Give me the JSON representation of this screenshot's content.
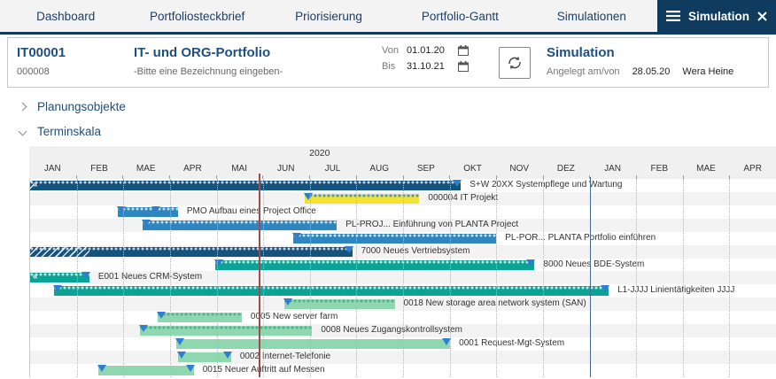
{
  "nav": {
    "tabs": [
      "Dashboard",
      "Portfoliosteckbrief",
      "Priorisierung",
      "Portfolio-Gantt",
      "Simulationen"
    ],
    "active_tab": "Simulation"
  },
  "header": {
    "id": "IT00001",
    "code": "000008",
    "title": "IT- und ORG-Portfolio",
    "subtitle": "-Bitte eine Bezeichnung eingeben-",
    "von_label": "Von",
    "von_value": "01.01.20",
    "bis_label": "Bis",
    "bis_value": "31.10.21",
    "sim_title": "Simulation",
    "created_label": "Angelegt am/von",
    "created_date": "28.05.20",
    "created_by": "Wera Heine"
  },
  "sections": {
    "planungsobjekte": "Planungsobjekte",
    "terminskala": "Terminskala"
  },
  "colors": {
    "active_tab_bg": "#0f3b5e",
    "nav_text": "#1c3f63",
    "heading": "#1d5080",
    "navy_bar": "#15537e",
    "blue_bar": "#2e86c0",
    "teal_bar": "#0aa396",
    "mint_bar": "#8fd7af",
    "yellow_bar": "#f2e233",
    "today_line": "#9e4b4b",
    "year_line": "#46688e",
    "triangle": "#2e7fd0",
    "dot_on_dark": "rgba(255,255,255,0.75)",
    "dot_on_yellow": "#4a90d9",
    "dot_on_mint": "rgba(10,120,110,0.45)"
  },
  "chart_data": {
    "type": "gantt",
    "year_label": "2020",
    "months": [
      "JAN",
      "FEB",
      "MAE",
      "APR",
      "MAI",
      "JUN",
      "JUL",
      "AUG",
      "SEP",
      "OKT",
      "NOV",
      "DEZ",
      "JAN",
      "FEB",
      "MAE",
      "APR"
    ],
    "timeline_months": 16,
    "timeline_start": "01.01.2020",
    "today_line_month": 4.9,
    "year_line_month": 12.0,
    "rows": [
      {
        "label": "S+W 20XX Systempflege und Wartung",
        "start": 0,
        "end": 9.24,
        "color": "navy_bar",
        "dotted": true,
        "tri_end": true,
        "continues_left": true,
        "hatch_until": 0.07
      },
      {
        "label": "000004 IT Projekt",
        "start": 5.9,
        "end": 8.35,
        "color": "yellow_bar",
        "dotted": true,
        "tri_start": true
      },
      {
        "label": "PMO  Aufbau eines Project Office",
        "start": 1.88,
        "end": 3.17,
        "color": "blue_bar",
        "dotted": true,
        "tri_start": true,
        "tri_mid": 2.69
      },
      {
        "label": "PL-PROJ... Einführung von PLANTA Project",
        "start": 2.41,
        "end": 6.58,
        "color": "blue_bar",
        "dotted": true,
        "tri_start": true
      },
      {
        "label": "PL-POR...  PLANTA Portfolio einführen",
        "start": 5.64,
        "end": 10.0,
        "color": "blue_bar",
        "dotted": true,
        "tri_start": true
      },
      {
        "label": "7000 Neues Vertriebsystem",
        "start": 0,
        "end": 6.91,
        "color": "navy_bar",
        "dotted": true,
        "tri_end": true,
        "hatch_until": 1.27
      },
      {
        "label": "8000 Neues BDE-System",
        "start": 3.98,
        "end": 10.82,
        "color": "teal_bar",
        "dotted": true,
        "tri_start": true,
        "tri_end": true
      },
      {
        "label": "E001 Neues CRM-System",
        "start": 0,
        "end": 1.27,
        "color": "teal_bar",
        "dotted": true,
        "tri_end": true,
        "continues_left": true
      },
      {
        "label": "L1-JJJJ Linientätigkeiten JJJJ",
        "start": 0.51,
        "end": 12.41,
        "color": "teal_bar",
        "dotted": true,
        "tri_start": true,
        "tri_end": true
      },
      {
        "label": "0018 New storage area network system (SAN)",
        "start": 5.45,
        "end": 7.82,
        "color": "mint_bar",
        "dotted": true,
        "tri_start": true
      },
      {
        "label": "0005 New server farm",
        "start": 2.73,
        "end": 4.54,
        "color": "mint_bar",
        "dotted": true,
        "tri_start": true
      },
      {
        "label": "0008 Neues Zugangskontrollsystem",
        "start": 2.35,
        "end": 6.05,
        "color": "mint_bar",
        "dotted": true,
        "tri_start": true
      },
      {
        "label": "0001 Request-Mgt-System",
        "start": 3.13,
        "end": 9.01,
        "color": "mint_bar",
        "dotted": false,
        "tri_start": true,
        "tri_end": true
      },
      {
        "label": "0002 Internet-Telefonie",
        "start": 3.17,
        "end": 4.31,
        "color": "mint_bar",
        "dotted": false,
        "tri_start": true,
        "tri_end": true
      },
      {
        "label": "0015 Neuer Auftritt auf Messen",
        "start": 1.46,
        "end": 3.51,
        "color": "mint_bar",
        "dotted": false,
        "tri_start": true,
        "tri_end": true
      }
    ]
  }
}
